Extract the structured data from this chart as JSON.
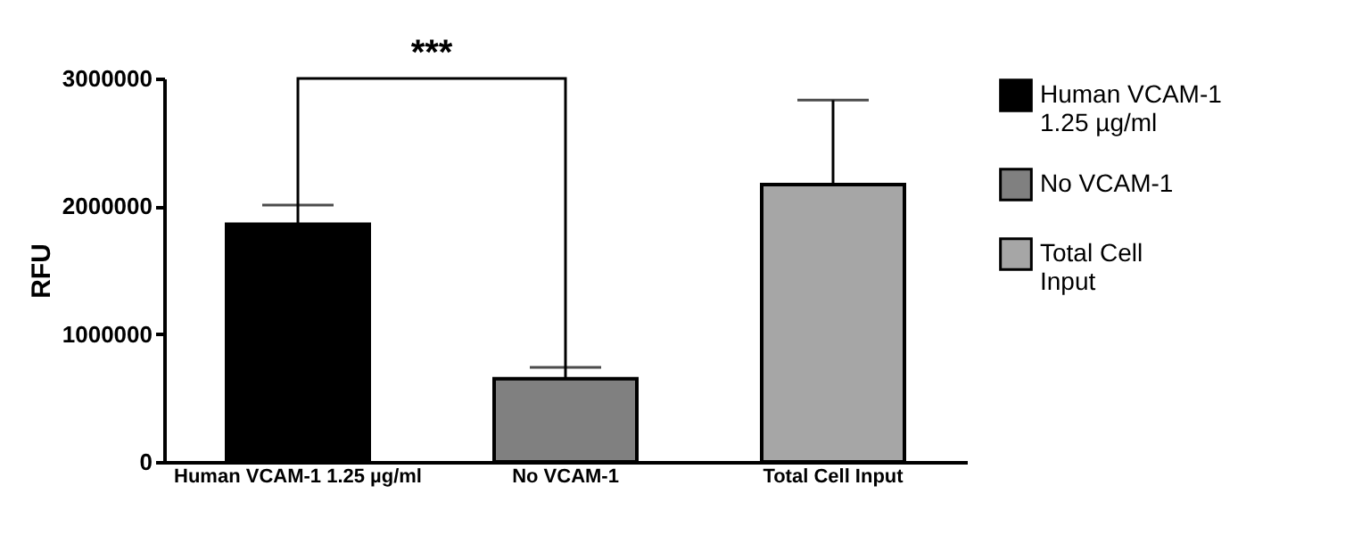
{
  "chart_data": {
    "type": "bar",
    "ylabel": "RFU",
    "categories": [
      "Human VCAM-1 1.25 µg/ml",
      "No VCAM-1",
      "Total Cell Input"
    ],
    "series": [
      {
        "name": "Human VCAM-1 1.25 µg/ml",
        "color": "#000000",
        "values": [
          1860000,
          null,
          null
        ],
        "errors": [
          [
            1860000,
            2010000
          ],
          null,
          null
        ]
      },
      {
        "name": "No VCAM-1",
        "color": "#808080",
        "values": [
          null,
          650000,
          null
        ],
        "errors": [
          null,
          [
            650000,
            740000
          ],
          null
        ]
      },
      {
        "name": "Total Cell Input",
        "color": "#a6a6a6",
        "values": [
          null,
          null,
          2170000
        ],
        "errors": [
          null,
          null,
          [
            2170000,
            2830000
          ]
        ]
      }
    ],
    "ylim": [
      0,
      3000000
    ],
    "yticks": [
      0,
      1000000,
      2000000,
      3000000
    ],
    "grid": false,
    "legend": "right",
    "annotations": [
      "***"
    ]
  }
}
